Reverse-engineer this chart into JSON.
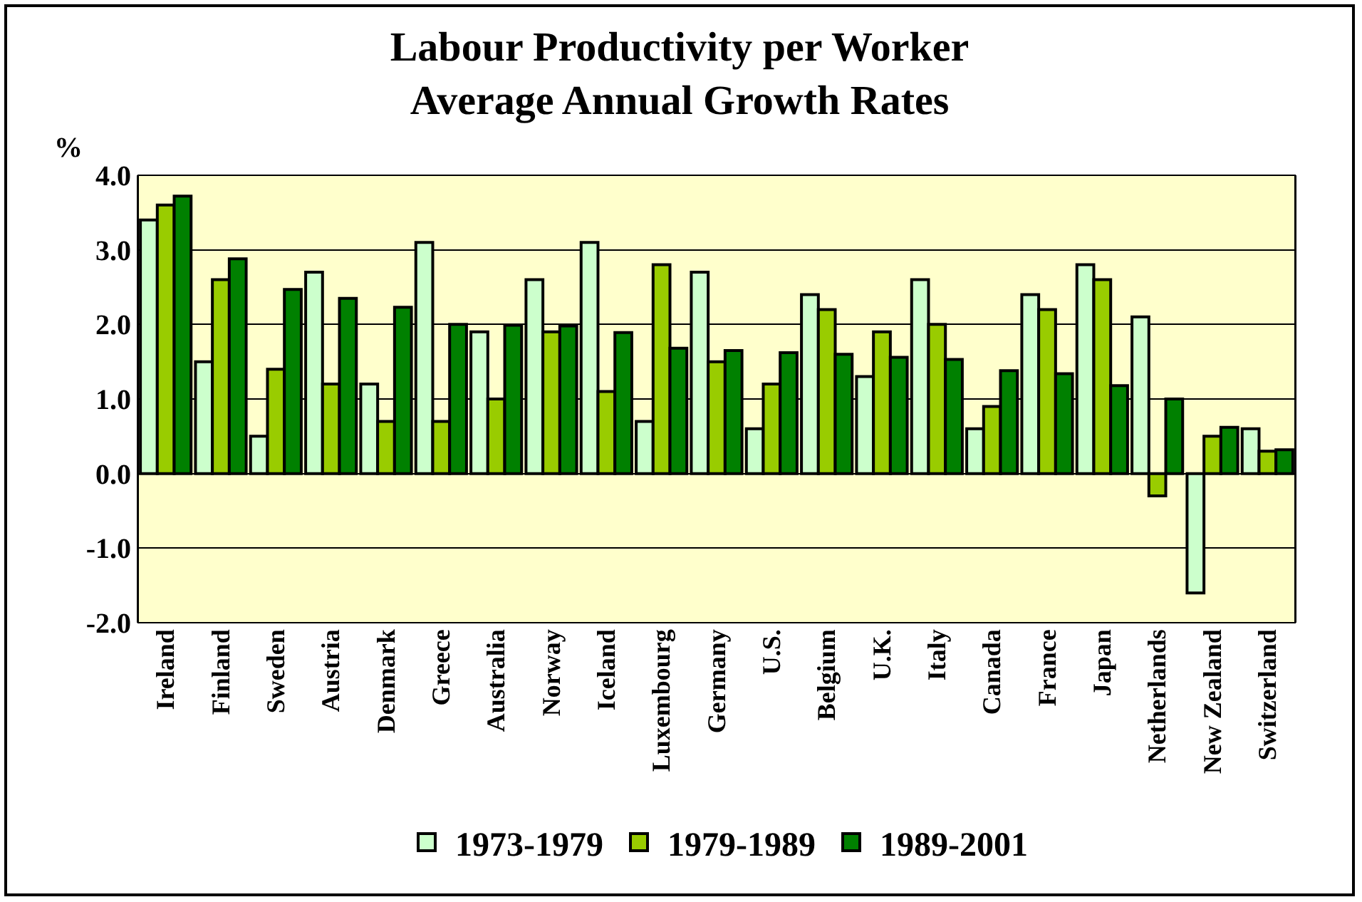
{
  "chart_data": {
    "type": "bar",
    "title": "Labour Productivity per Worker\nAverage Annual Growth Rates",
    "ylabel": "%",
    "categories": [
      "Ireland",
      "Finland",
      "Sweden",
      "Austria",
      "Denmark",
      "Greece",
      "Australia",
      "Norway",
      "Iceland",
      "Luxembourg",
      "Germany",
      "U.S.",
      "Belgium",
      "U.K.",
      "Italy",
      "Canada",
      "France",
      "Japan",
      "Netherlands",
      "New Zealand",
      "Switzerland"
    ],
    "series": [
      {
        "name": "1973-1979",
        "color": "#ccffcc",
        "values": [
          3.4,
          1.5,
          0.5,
          2.7,
          1.2,
          3.1,
          1.9,
          2.6,
          3.1,
          0.7,
          2.7,
          0.6,
          2.4,
          1.3,
          2.6,
          0.6,
          2.4,
          2.8,
          2.1,
          -1.6,
          0.6
        ]
      },
      {
        "name": "1979-1989",
        "color": "#99cc00",
        "values": [
          3.6,
          2.6,
          1.4,
          1.2,
          0.7,
          0.7,
          1.0,
          1.9,
          1.1,
          2.8,
          1.5,
          1.2,
          2.2,
          1.9,
          2.0,
          0.9,
          2.2,
          2.6,
          -0.3,
          0.5,
          0.3
        ]
      },
      {
        "name": "1989-2001",
        "color": "#008000",
        "values": [
          3.72,
          2.88,
          2.47,
          2.35,
          2.23,
          2.0,
          1.99,
          1.98,
          1.89,
          1.68,
          1.65,
          1.62,
          1.6,
          1.56,
          1.53,
          1.38,
          1.34,
          1.18,
          1.0,
          0.62,
          0.32
        ]
      }
    ],
    "ylim": [
      -2,
      4
    ],
    "yticks": [
      {
        "value": -2,
        "label": "-2.0"
      },
      {
        "value": -1,
        "label": "-1.0"
      },
      {
        "value": 0,
        "label": "0.0"
      },
      {
        "value": 1,
        "label": "1.0"
      },
      {
        "value": 2,
        "label": "2.0"
      },
      {
        "value": 3,
        "label": "3.0"
      },
      {
        "value": 4,
        "label": "4.0"
      }
    ],
    "grid": "y",
    "legend": "bottom"
  }
}
